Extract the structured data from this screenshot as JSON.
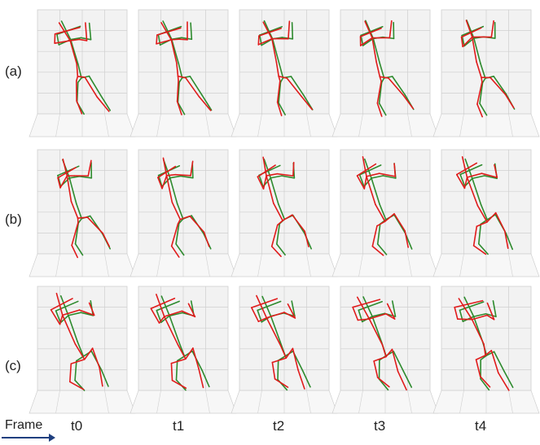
{
  "rows": [
    {
      "label": "(a)"
    },
    {
      "label": "(b)"
    },
    {
      "label": "(c)"
    }
  ],
  "frames": [
    "t0",
    "t1",
    "t2",
    "t3",
    "t4"
  ],
  "frame_axis_label": "Frame",
  "colors": {
    "ground_truth": "#2e8b2e",
    "prediction": "#e01b1b",
    "grid": "#cfcfcf",
    "pane": "#f2f2f2",
    "arrow": "#1f3f7f"
  }
}
